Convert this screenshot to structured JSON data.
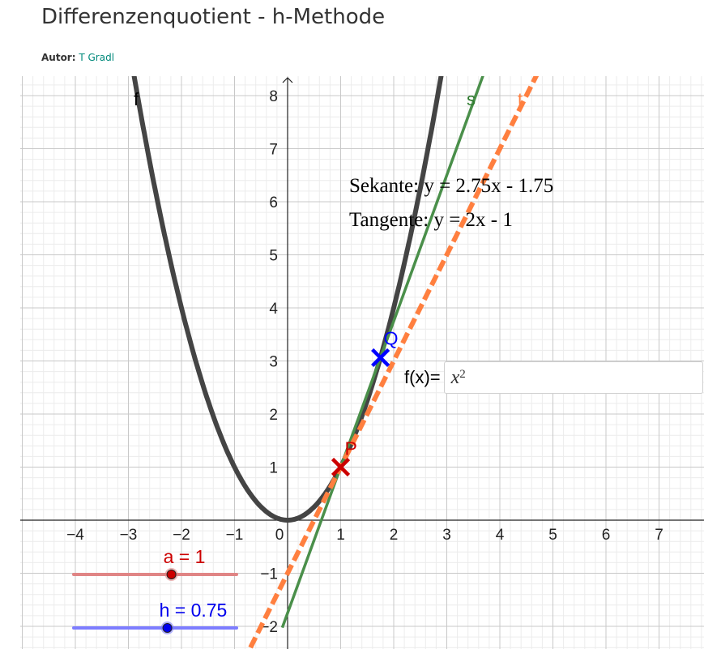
{
  "page": {
    "title": "Differenzenquotient - h-Methode",
    "author_label": "Autor:",
    "author_name": "T Gradl"
  },
  "graph": {
    "x_ticks": [
      "−4",
      "−3",
      "−2",
      "−1",
      "0",
      "1",
      "2",
      "3",
      "4",
      "5",
      "6",
      "7"
    ],
    "y_ticks": [
      "8",
      "7",
      "6",
      "5",
      "4",
      "3",
      "2",
      "1",
      "−1",
      "−2"
    ],
    "curve_label": "f",
    "secant_label": "s",
    "tangent_label": "t",
    "secant_text": "Sekante: y = 2.75x - 1.75",
    "tangent_text": "Tangente: y = 2x - 1",
    "point_p_label": "P",
    "point_q_label": "Q",
    "function_input_label": "f(x)=",
    "function_input_base": "x",
    "function_input_exponent": "2"
  },
  "sliders": {
    "a": {
      "label": "a = 1",
      "value": 1,
      "min": -5,
      "max": 5
    },
    "h": {
      "label": "h = 0.75",
      "value": 0.75,
      "min": -5,
      "max": 5
    }
  },
  "colors": {
    "curve": "#444444",
    "secant": "#4a8f4a",
    "tangent": "#ff7f3f",
    "point_p": "#cc0000",
    "point_q": "#0000ff",
    "slider_a": "#e08585",
    "slider_h": "#7d7dff",
    "author_link": "#00897b"
  }
}
